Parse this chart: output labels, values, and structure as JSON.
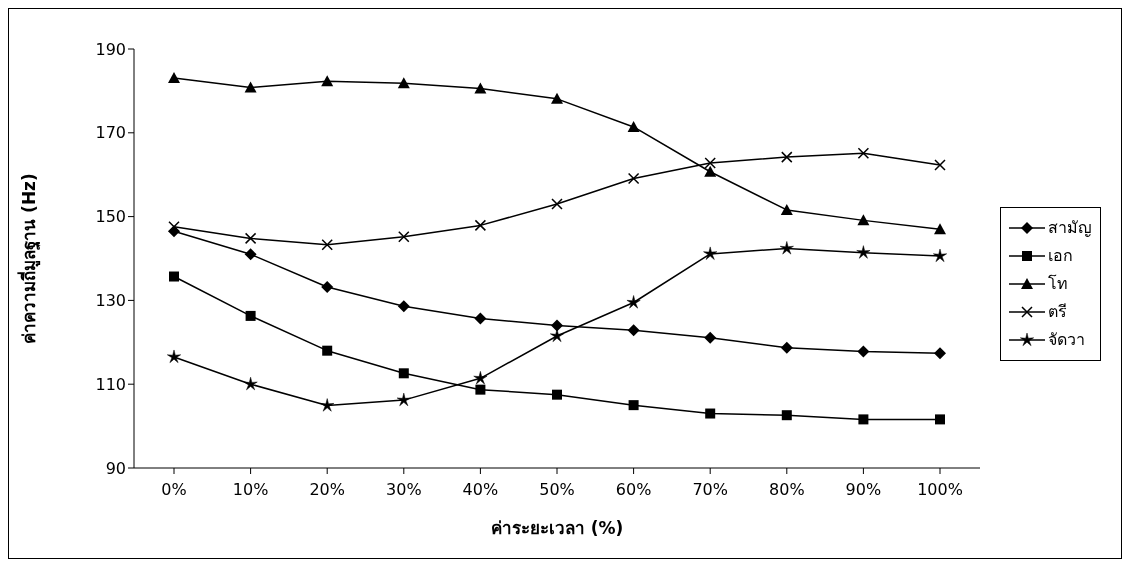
{
  "chart_data": {
    "type": "line",
    "xlabel": "ค่าระยะเวลา (%)",
    "ylabel": "ค่าความถี่มูลฐาน (Hz)",
    "categories": [
      "0%",
      "10%",
      "20%",
      "30%",
      "40%",
      "50%",
      "60%",
      "70%",
      "80%",
      "90%",
      "100%"
    ],
    "ylim": [
      90,
      190
    ],
    "yticks": [
      90,
      110,
      130,
      150,
      170,
      190
    ],
    "grid": false,
    "legend": "right",
    "series": [
      {
        "name": "สามัญ",
        "color": "#000000",
        "marker": "diamond",
        "values": [
          146.5,
          141.0,
          133.2,
          128.6,
          125.7,
          124.0,
          122.9,
          121.1,
          118.7,
          117.8,
          117.4
        ]
      },
      {
        "name": "เอก",
        "color": "#000000",
        "marker": "square",
        "values": [
          135.7,
          126.3,
          118.0,
          112.6,
          108.7,
          107.5,
          105.0,
          103.0,
          102.6,
          101.6,
          101.6
        ]
      },
      {
        "name": "โท",
        "color": "#000000",
        "marker": "triangle",
        "values": [
          183.1,
          180.8,
          182.3,
          181.8,
          180.6,
          178.1,
          171.4,
          160.7,
          151.6,
          149.1,
          147.0
        ]
      },
      {
        "name": "ตรี",
        "color": "#000000",
        "marker": "cross",
        "values": [
          147.6,
          144.8,
          143.3,
          145.2,
          147.9,
          153.0,
          159.1,
          162.8,
          164.2,
          165.1,
          162.3
        ]
      },
      {
        "name": "จัดวา",
        "color": "#000000",
        "marker": "star",
        "values": [
          116.5,
          110.0,
          104.9,
          106.2,
          111.4,
          121.5,
          129.5,
          141.1,
          142.4,
          141.4,
          140.6
        ]
      }
    ]
  }
}
